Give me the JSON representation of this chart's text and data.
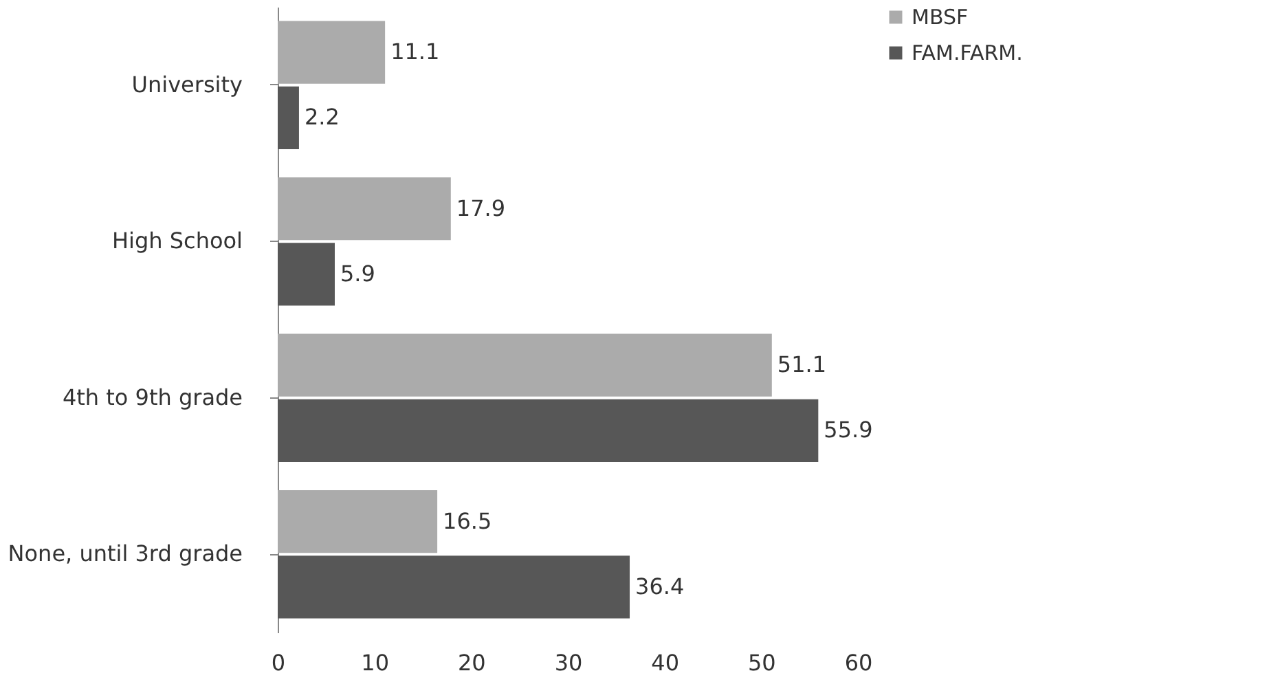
{
  "chart_data": {
    "type": "bar",
    "orientation": "horizontal",
    "categories": [
      "University",
      "High School",
      "4th to 9th grade",
      "None, until 3rd grade"
    ],
    "series": [
      {
        "name": "MBSF",
        "color": "#ababab",
        "values": [
          11.1,
          17.9,
          51.1,
          16.5
        ]
      },
      {
        "name": "FAM.FARM.",
        "color": "#575757",
        "values": [
          2.2,
          5.9,
          55.9,
          36.4
        ]
      }
    ],
    "xlim": [
      0,
      60
    ],
    "xticks": [
      0,
      10,
      20,
      30,
      40,
      50,
      60
    ],
    "grid": false,
    "legend": "right",
    "data_labels": true
  }
}
